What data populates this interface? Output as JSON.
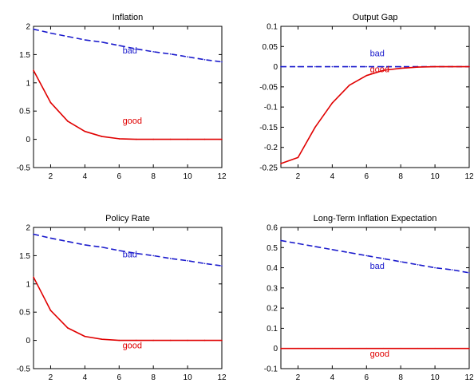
{
  "chart_data": [
    {
      "type": "line",
      "title": "Inflation",
      "xlim": [
        1,
        12
      ],
      "ylim": [
        -0.5,
        2
      ],
      "xticks": [
        2,
        4,
        6,
        8,
        10,
        12
      ],
      "yticks": [
        -0.5,
        0,
        0.5,
        1,
        1.5,
        2
      ],
      "ytick_labels": [
        "-0.5",
        "0",
        "0.5",
        "1",
        "1.5",
        "2"
      ],
      "grid": false,
      "series": [
        {
          "name": "bad",
          "color": "#1a1acc",
          "style": "dashed",
          "x": [
            1,
            2,
            3,
            4,
            5,
            6,
            7,
            8,
            9,
            10,
            11,
            12
          ],
          "y": [
            1.95,
            1.88,
            1.82,
            1.76,
            1.72,
            1.66,
            1.6,
            1.55,
            1.51,
            1.46,
            1.41,
            1.37
          ]
        },
        {
          "name": "good",
          "color": "#e00000",
          "style": "solid",
          "x": [
            1,
            2,
            3,
            4,
            5,
            6,
            7,
            8,
            9,
            10,
            11,
            12
          ],
          "y": [
            1.22,
            0.65,
            0.32,
            0.14,
            0.05,
            0.01,
            0.0,
            0.0,
            0.0,
            0.0,
            0.0,
            0.0
          ]
        }
      ],
      "annotations": [
        {
          "text": "bad",
          "series": "bad",
          "x": 6.2,
          "y": 1.52
        },
        {
          "text": "good",
          "series": "good",
          "x": 6.2,
          "y": 0.28
        }
      ]
    },
    {
      "type": "line",
      "title": "Output Gap",
      "xlim": [
        1,
        12
      ],
      "ylim": [
        -0.25,
        0.1
      ],
      "xticks": [
        2,
        4,
        6,
        8,
        10,
        12
      ],
      "yticks": [
        -0.25,
        -0.2,
        -0.15,
        -0.1,
        -0.05,
        0,
        0.05,
        0.1
      ],
      "ytick_labels": [
        "-0.25",
        "-0.2",
        "-0.15",
        "-0.1",
        "-0.05",
        "0",
        "0.05",
        "0.1"
      ],
      "grid": false,
      "series": [
        {
          "name": "bad",
          "color": "#1a1acc",
          "style": "dashed",
          "x": [
            1,
            2,
            3,
            4,
            5,
            6,
            7,
            8,
            9,
            10,
            11,
            12
          ],
          "y": [
            0,
            0,
            0,
            0,
            0,
            0,
            0,
            0,
            0,
            0,
            0,
            0
          ]
        },
        {
          "name": "good",
          "color": "#e00000",
          "style": "solid",
          "x": [
            1,
            2,
            3,
            4,
            5,
            6,
            7,
            8,
            9,
            10,
            11,
            12
          ],
          "y": [
            -0.24,
            -0.225,
            -0.15,
            -0.09,
            -0.046,
            -0.022,
            -0.009,
            -0.004,
            -0.001,
            0.0,
            0.0,
            0.0
          ]
        }
      ],
      "annotations": [
        {
          "text": "bad",
          "series": "bad",
          "x": 6.2,
          "y": 0.026
        },
        {
          "text": "good",
          "series": "good",
          "x": 6.2,
          "y": -0.014
        }
      ]
    },
    {
      "type": "line",
      "title": "Policy Rate",
      "xlim": [
        1,
        12
      ],
      "ylim": [
        -0.5,
        2
      ],
      "xticks": [
        2,
        4,
        6,
        8,
        10,
        12
      ],
      "yticks": [
        -0.5,
        0,
        0.5,
        1,
        1.5,
        2
      ],
      "ytick_labels": [
        "-0.5",
        "0",
        "0.5",
        "1",
        "1.5",
        "2"
      ],
      "grid": false,
      "series": [
        {
          "name": "bad",
          "color": "#1a1acc",
          "style": "dashed",
          "x": [
            1,
            2,
            3,
            4,
            5,
            6,
            7,
            8,
            9,
            10,
            11,
            12
          ],
          "y": [
            1.88,
            1.81,
            1.75,
            1.69,
            1.65,
            1.59,
            1.54,
            1.5,
            1.45,
            1.41,
            1.36,
            1.32
          ]
        },
        {
          "name": "good",
          "color": "#e00000",
          "style": "solid",
          "x": [
            1,
            2,
            3,
            4,
            5,
            6,
            7,
            8,
            9,
            10,
            11,
            12
          ],
          "y": [
            1.12,
            0.53,
            0.22,
            0.07,
            0.02,
            0.0,
            0.0,
            0.0,
            0.0,
            0.0,
            0.0,
            0.0
          ]
        }
      ],
      "annotations": [
        {
          "text": "bad",
          "series": "bad",
          "x": 6.2,
          "y": 1.47
        },
        {
          "text": "good",
          "series": "good",
          "x": 6.2,
          "y": -0.14
        }
      ]
    },
    {
      "type": "line",
      "title": "Long-Term Inflation Expectation",
      "xlim": [
        1,
        12
      ],
      "ylim": [
        -0.1,
        0.6
      ],
      "xticks": [
        2,
        4,
        6,
        8,
        10,
        12
      ],
      "yticks": [
        -0.1,
        0,
        0.1,
        0.2,
        0.3,
        0.4,
        0.5,
        0.6
      ],
      "ytick_labels": [
        "-0.1",
        "0",
        "0.1",
        "0.2",
        "0.3",
        "0.4",
        "0.5",
        "0.6"
      ],
      "grid": false,
      "series": [
        {
          "name": "bad",
          "color": "#1a1acc",
          "style": "dashed",
          "x": [
            1,
            2,
            3,
            4,
            5,
            6,
            7,
            8,
            9,
            10,
            11,
            12
          ],
          "y": [
            0.535,
            0.52,
            0.505,
            0.49,
            0.475,
            0.46,
            0.445,
            0.43,
            0.415,
            0.4,
            0.39,
            0.375
          ]
        },
        {
          "name": "good",
          "color": "#e00000",
          "style": "solid",
          "x": [
            1,
            2,
            3,
            4,
            5,
            6,
            7,
            8,
            9,
            10,
            11,
            12
          ],
          "y": [
            0,
            0,
            0,
            0,
            0,
            0,
            0,
            0,
            0,
            0,
            0,
            0
          ]
        }
      ],
      "annotations": [
        {
          "text": "bad",
          "series": "bad",
          "x": 6.2,
          "y": 0.395
        },
        {
          "text": "good",
          "series": "good",
          "x": 6.2,
          "y": -0.04
        }
      ]
    }
  ]
}
